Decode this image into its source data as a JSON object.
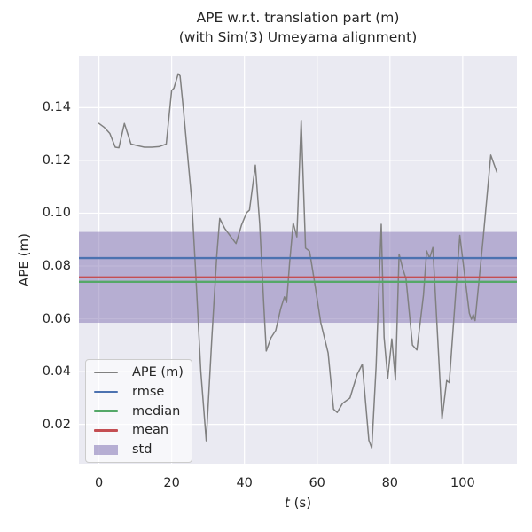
{
  "figure": {
    "title_line1": "APE w.r.t. translation part (m)",
    "title_line2": "(with Sim(3) Umeyama alignment)",
    "ylabel": "APE (m)",
    "xlabel_variable": "t",
    "xlabel_units": " (s)"
  },
  "chart_data": {
    "type": "line",
    "title": "APE w.r.t. translation part (m)\n(with Sim(3) Umeyama alignment)",
    "xlabel": "t (s)",
    "ylabel": "APE (m)",
    "xlim": [
      -5.5,
      114.9
    ],
    "ylim": [
      0.0051,
      0.1596
    ],
    "xticks": [
      0,
      20,
      40,
      60,
      80,
      100
    ],
    "yticks": [
      0.02,
      0.04,
      0.06,
      0.08,
      0.1,
      0.12,
      0.14
    ],
    "grid": true,
    "legend_position": "lower-left",
    "series": [
      {
        "name": "APE (m)",
        "color": "#808080",
        "points": [
          [
            0,
            0.134
          ],
          [
            1.5,
            0.1325
          ],
          [
            3,
            0.1302
          ],
          [
            4.5,
            0.125
          ],
          [
            5.5,
            0.1248
          ],
          [
            7,
            0.134
          ],
          [
            8.8,
            0.1262
          ],
          [
            10.5,
            0.1256
          ],
          [
            12.5,
            0.125
          ],
          [
            14.5,
            0.125
          ],
          [
            16.5,
            0.1252
          ],
          [
            18.5,
            0.1262
          ],
          [
            20,
            0.1465
          ],
          [
            20.6,
            0.1473
          ],
          [
            21.8,
            0.1528
          ],
          [
            22.3,
            0.152
          ],
          [
            23.2,
            0.1395
          ],
          [
            24.3,
            0.123
          ],
          [
            25.5,
            0.105
          ],
          [
            26.5,
            0.08
          ],
          [
            28,
            0.04
          ],
          [
            29.5,
            0.0138
          ],
          [
            31,
            0.052
          ],
          [
            32.4,
            0.084
          ],
          [
            33.2,
            0.098
          ],
          [
            34.6,
            0.0942
          ],
          [
            36.2,
            0.0912
          ],
          [
            37.7,
            0.0885
          ],
          [
            39.2,
            0.0955
          ],
          [
            40.6,
            0.1002
          ],
          [
            41.4,
            0.1012
          ],
          [
            43,
            0.1182
          ],
          [
            44.2,
            0.096
          ],
          [
            45.3,
            0.066
          ],
          [
            46,
            0.0478
          ],
          [
            47.3,
            0.0528
          ],
          [
            48.6,
            0.0556
          ],
          [
            50,
            0.064
          ],
          [
            51,
            0.0683
          ],
          [
            51.6,
            0.0662
          ],
          [
            52.4,
            0.081
          ],
          [
            53.4,
            0.0963
          ],
          [
            54.4,
            0.091
          ],
          [
            55.6,
            0.1352
          ],
          [
            56.8,
            0.0868
          ],
          [
            57.9,
            0.0856
          ],
          [
            59.2,
            0.0745
          ],
          [
            61,
            0.0585
          ],
          [
            63,
            0.047
          ],
          [
            64.5,
            0.0258
          ],
          [
            65.5,
            0.0245
          ],
          [
            67,
            0.028
          ],
          [
            69,
            0.03
          ],
          [
            71,
            0.039
          ],
          [
            72.4,
            0.0428
          ],
          [
            74.2,
            0.014
          ],
          [
            75,
            0.011
          ],
          [
            76.2,
            0.042
          ],
          [
            77.6,
            0.0958
          ],
          [
            78.4,
            0.053
          ],
          [
            79.4,
            0.0375
          ],
          [
            80.5,
            0.0524
          ],
          [
            81.5,
            0.0368
          ],
          [
            82.5,
            0.0845
          ],
          [
            83.5,
            0.079
          ],
          [
            84.4,
            0.0752
          ],
          [
            86.2,
            0.05
          ],
          [
            87.4,
            0.0482
          ],
          [
            89.2,
            0.069
          ],
          [
            90.1,
            0.0857
          ],
          [
            90.9,
            0.083
          ],
          [
            91.8,
            0.087
          ],
          [
            94.3,
            0.022
          ],
          [
            95.6,
            0.0366
          ],
          [
            96.3,
            0.0358
          ],
          [
            99.2,
            0.0916
          ],
          [
            101.8,
            0.0622
          ],
          [
            102.4,
            0.0598
          ],
          [
            102.9,
            0.0616
          ],
          [
            103.4,
            0.0593
          ],
          [
            105.6,
            0.09
          ],
          [
            107.7,
            0.122
          ],
          [
            109.4,
            0.1155
          ]
        ]
      }
    ],
    "stat_lines": [
      {
        "name": "rmse",
        "value": 0.083,
        "color": "#4c72b0"
      },
      {
        "name": "median",
        "value": 0.074,
        "color": "#55a868"
      },
      {
        "name": "mean",
        "value": 0.0757,
        "color": "#c44e52"
      }
    ],
    "std_band": {
      "name": "std",
      "center": 0.0757,
      "low": 0.0585,
      "high": 0.0929,
      "color": "#8172b2",
      "alpha": 0.5
    },
    "legend_entries": [
      {
        "label": "APE (m)",
        "swatch": "line",
        "color": "#808080"
      },
      {
        "label": "rmse",
        "swatch": "line",
        "color": "#4c72b0"
      },
      {
        "label": "median",
        "swatch": "line",
        "color": "#55a868"
      },
      {
        "label": "mean",
        "swatch": "line",
        "color": "#c44e52"
      },
      {
        "label": "std",
        "swatch": "patch",
        "color": "#8172b2"
      }
    ],
    "colors": {
      "figure_bg": "#ffffff",
      "plot_bg": "#eaeaf2",
      "grid": "#ffffff",
      "text": "#262626"
    }
  }
}
